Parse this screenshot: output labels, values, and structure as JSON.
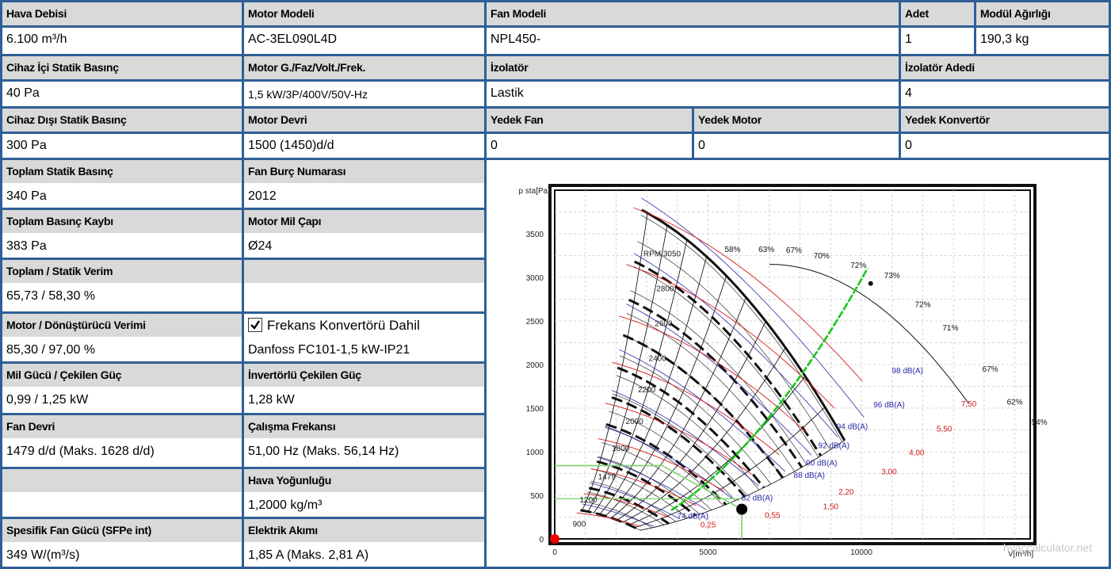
{
  "table": {
    "row1": {
      "hava_debisi": {
        "label": "Hava Debisi",
        "value": "6.100 m³/h"
      },
      "motor_modeli": {
        "label": "Motor Modeli",
        "value": "AC-3EL090L4D"
      },
      "fan_modeli": {
        "label": "Fan Modeli",
        "value": "NPL450-"
      },
      "adet": {
        "label": "Adet",
        "value": "1"
      },
      "modul_agirligi": {
        "label": "Modül Ağırlığı",
        "value": "190,3 kg"
      }
    },
    "row2": {
      "cihaz_ici": {
        "label": "Cihaz İçi Statik Basınç",
        "value": "40 Pa"
      },
      "motor_gfvf": {
        "label": "Motor G./Faz/Volt./Frek.",
        "value": "1,5 kW/3P/400V/50V-Hz"
      },
      "izolator": {
        "label": "İzolatör",
        "value": "Lastik"
      },
      "izolator_adedi": {
        "label": "İzolatör Adedi",
        "value": "4"
      }
    },
    "row3": {
      "cihaz_disi": {
        "label": "Cihaz Dışı Statik Basınç",
        "value": "300 Pa"
      },
      "motor_devri": {
        "label": "Motor Devri",
        "value": "1500 (1450)d/d"
      },
      "yedek_fan": {
        "label": "Yedek Fan",
        "value": "0"
      },
      "yedek_motor": {
        "label": "Yedek Motor",
        "value": "0"
      },
      "yedek_konvertor": {
        "label": "Yedek Konvertör",
        "value": "0"
      }
    },
    "left": {
      "toplam_statik": {
        "label": "Toplam Statik Basınç",
        "value": "340 Pa"
      },
      "fan_burc": {
        "label": "Fan Burç Numarası",
        "value": "2012"
      },
      "toplam_kayip": {
        "label": "Toplam Basınç Kaybı",
        "value": "383 Pa"
      },
      "motor_mil": {
        "label": "Motor Mil Çapı",
        "value": "Ø24"
      },
      "verim": {
        "label": "Toplam / Statik Verim",
        "value": "65,73 / 58,30 %"
      },
      "motor_verim": {
        "label": "Motor / Dönüştürücü Verimi",
        "value": "85,30 / 97,00 %"
      },
      "frekans_konv": {
        "label": "Frekans Konvertörü Dahil",
        "value": "Danfoss FC101-1,5 kW-IP21",
        "checked": true
      },
      "mil_gucu": {
        "label": "Mil Gücü / Çekilen Güç",
        "value": "0,99 / 1,25 kW"
      },
      "invertorlu": {
        "label": "İnvertörlü Çekilen Güç",
        "value": "1,28 kW"
      },
      "fan_devri": {
        "label": "Fan Devri",
        "value": "1479 d/d (Maks. 1628 d/d)"
      },
      "calisma_frek": {
        "label": "Çalışma Frekansı",
        "value": "51,00 Hz (Maks. 56,14 Hz)"
      },
      "hava_yog": {
        "label": "Hava Yoğunluğu",
        "value": "1,2000 kg/m³"
      },
      "sfp": {
        "label": "Spesifik Fan Gücü (SFPe int)",
        "value": "349 W/(m³/s)"
      },
      "akim": {
        "label": "Elektrik Akımı",
        "value": "1,85 A (Maks. 2,81 A)"
      }
    }
  },
  "chart_data": {
    "type": "line",
    "ylabel": "p sta[Pa]",
    "xlabel": "V[m³/h]",
    "xlim": [
      0,
      15500
    ],
    "ylim": [
      0,
      4000
    ],
    "x_ticks": [
      0,
      5000,
      10000
    ],
    "y_ticks": [
      500,
      1000,
      1500,
      2000,
      2500,
      3000,
      3500
    ],
    "grid": true,
    "watermark": "hvaccalculator.net",
    "operating_point": {
      "x": 6100,
      "y": 340
    },
    "rpm_curves": [
      {
        "label": "RPM 3050",
        "rpm": 3050
      },
      {
        "label": "2800",
        "rpm": 2800
      },
      {
        "label": "2600",
        "rpm": 2600
      },
      {
        "label": "2400",
        "rpm": 2400
      },
      {
        "label": "2200",
        "rpm": 2200
      },
      {
        "label": "2000",
        "rpm": 2000
      },
      {
        "label": "1800",
        "rpm": 1800
      },
      {
        "label": "1479",
        "rpm": 1479
      },
      {
        "label": "1200",
        "rpm": 1200
      },
      {
        "label": "900",
        "rpm": 900
      }
    ],
    "efficiency_labels": [
      "58%",
      "63%",
      "67%",
      "70%",
      "72%",
      "73%",
      "72%",
      "71%",
      "67%",
      "62%",
      "54%"
    ],
    "sound_labels": [
      "98 dB(A)",
      "96 dB(A)",
      "94 dB(A)",
      "92 dB(A)",
      "90 dB(A)",
      "88 dB(A)",
      "82 dB(A)",
      "74 dB(A)"
    ],
    "power_labels": [
      "7,50",
      "5,50",
      "4,00",
      "3,00",
      "2,20",
      "1,50",
      "0,55",
      "0,25"
    ]
  }
}
